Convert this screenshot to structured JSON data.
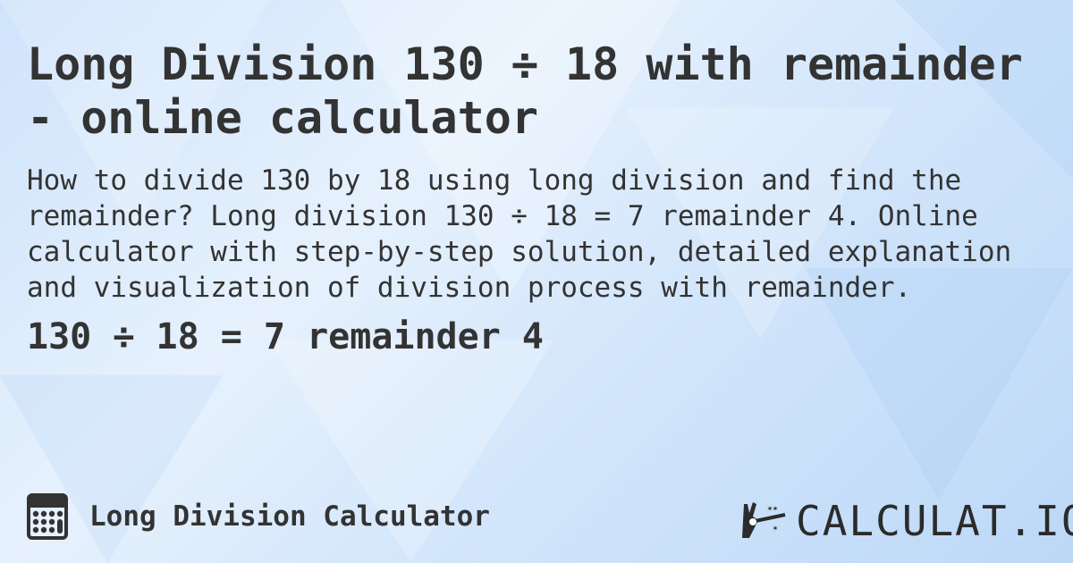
{
  "title": "Long Division 130 ÷ 18 with remainder - online calculator",
  "description": "How to divide 130 by 18 using long division and find the remainder? Long division 130 ÷ 18 = 7 remainder 4. Online calculator with step-by-step solution, detailed explanation and visualization of division process with remainder.",
  "result": "130 ÷ 18 = 7 remainder 4",
  "footer": {
    "calculator_icon": "calculator-icon",
    "calculator_label": "Long Division Calculator",
    "logo_text": "CALCULAT.IO"
  },
  "colors": {
    "text": "#333333",
    "background": "#d6e8fc"
  }
}
